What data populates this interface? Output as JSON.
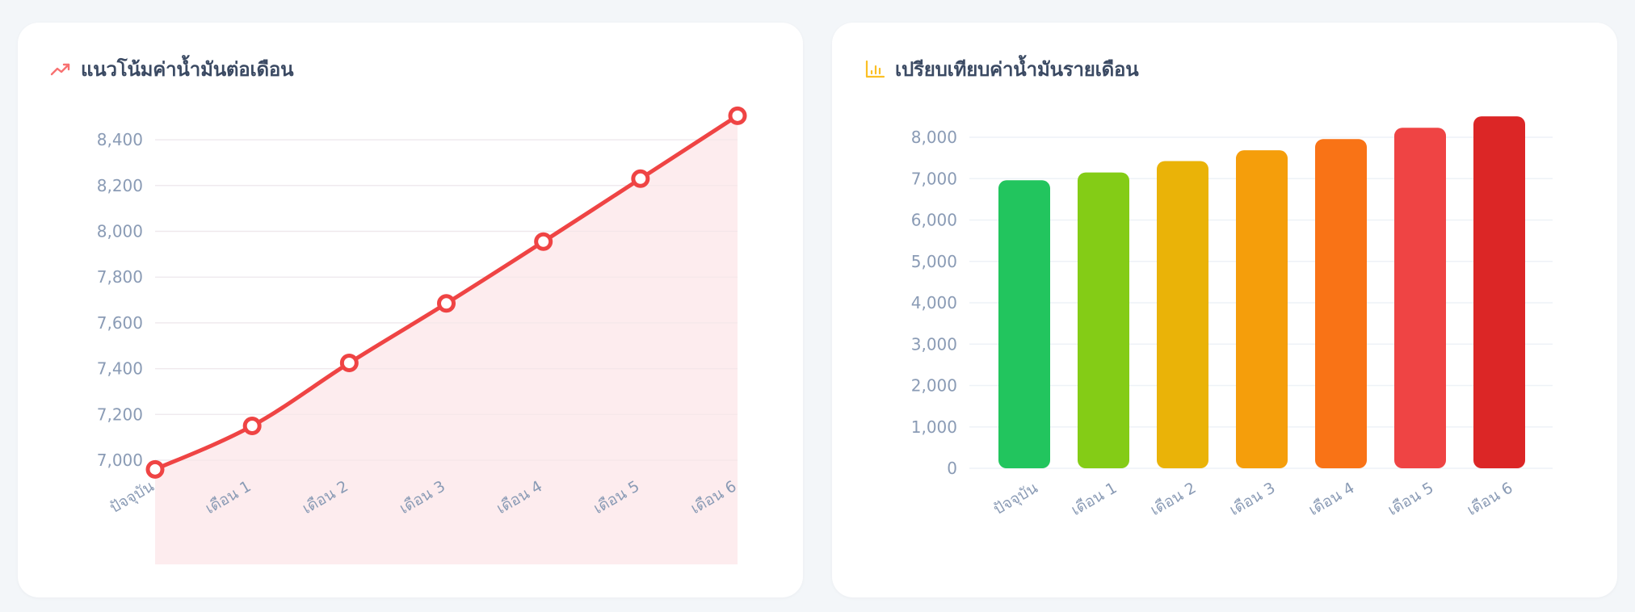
{
  "colors": {
    "background": "#f3f6f9",
    "card": "#ffffff",
    "title": "#3b4a63",
    "axis_label": "#8a9bb5",
    "grid": "#eef2f7",
    "line": "#ef4444",
    "area_fill": "#fdecee",
    "trend_icon": "#f87171",
    "bar_icon": "#fbbf24"
  },
  "cards": {
    "line": {
      "title": "แนวโน้มค่าน้ำมันต่อเดือน",
      "icon": "trending-up-icon"
    },
    "bar": {
      "title": "เปรียบเทียบค่าน้ำมันรายเดือน",
      "icon": "bar-chart-icon"
    }
  },
  "chart_data": [
    {
      "type": "area",
      "title": "แนวโน้มค่าน้ำมันต่อเดือน",
      "xlabel": "",
      "ylabel": "",
      "categories": [
        "ปัจจุบัน",
        "เดือน 1",
        "เดือน 2",
        "เดือน 3",
        "เดือน 4",
        "เดือน 5",
        "เดือน 6"
      ],
      "values": [
        6960,
        7150,
        7425,
        7685,
        7955,
        8230,
        8505
      ],
      "yticks": [
        7000,
        7200,
        7400,
        7600,
        7800,
        8000,
        8200,
        8400
      ],
      "ytick_labels": [
        "7,000",
        "7,200",
        "7,400",
        "7,600",
        "7,800",
        "8,000",
        "8,200",
        "8,400"
      ],
      "grid": true,
      "legend": null,
      "line_color": "#ef4444",
      "fill_color": "#fdecee"
    },
    {
      "type": "bar",
      "title": "เปรียบเทียบค่าน้ำมันรายเดือน",
      "xlabel": "",
      "ylabel": "",
      "categories": [
        "ปัจจุบัน",
        "เดือน 1",
        "เดือน 2",
        "เดือน 3",
        "เดือน 4",
        "เดือน 5",
        "เดือน 6"
      ],
      "values": [
        6960,
        7150,
        7425,
        7685,
        7955,
        8230,
        8505
      ],
      "bar_colors": [
        "#22c55e",
        "#84cc16",
        "#eab308",
        "#f59e0b",
        "#f97316",
        "#ef4444",
        "#dc2626"
      ],
      "yticks": [
        0,
        1000,
        2000,
        3000,
        4000,
        5000,
        6000,
        7000,
        8000
      ],
      "ytick_labels": [
        "0",
        "1,000",
        "2,000",
        "3,000",
        "4,000",
        "5,000",
        "6,000",
        "7,000",
        "8,000"
      ],
      "ylim": [
        0,
        8000
      ],
      "grid": true,
      "legend": null
    }
  ]
}
